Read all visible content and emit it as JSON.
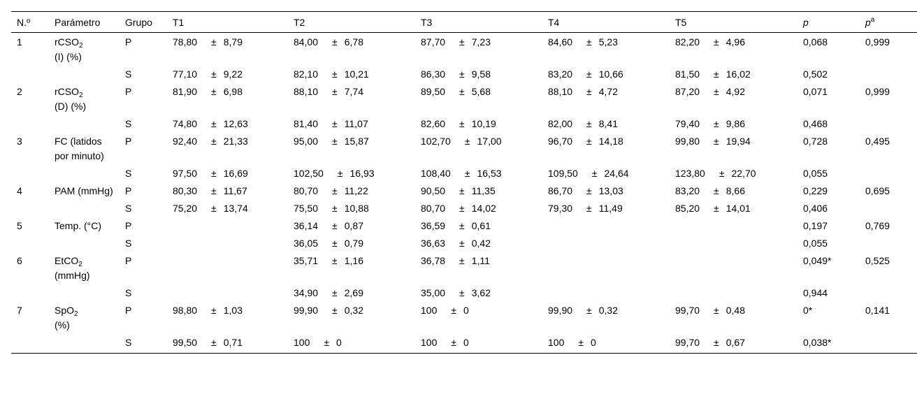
{
  "headers": {
    "n": "N.º",
    "param": "Parámetro",
    "grupo": "Grupo",
    "t1": "T1",
    "t2": "T2",
    "t3": "T3",
    "t4": "T4",
    "t5": "T5",
    "p": "p",
    "pa_base": "p",
    "pa_sup": "a"
  },
  "pm": "±",
  "params": [
    {
      "n": "1",
      "name_main": "rCSO",
      "name_sub": "2",
      "name_rest": "(I) (%)",
      "pa": "0,999"
    },
    {
      "n": "2",
      "name_main": "rCSO",
      "name_sub": "2",
      "name_rest": "(D) (%)",
      "pa": "0,999"
    },
    {
      "n": "3",
      "name_main": "FC (latidos por minuto)",
      "name_sub": "",
      "name_rest": "",
      "pa": "0,495"
    },
    {
      "n": "4",
      "name_main": "PAM (mmHg)",
      "name_sub": "",
      "name_rest": "",
      "pa": "0,695"
    },
    {
      "n": "5",
      "name_main": "Temp. (°C)",
      "name_sub": "",
      "name_rest": "",
      "pa": "0,769"
    },
    {
      "n": "6",
      "name_main": "EtCO",
      "name_sub": "2",
      "name_rest": "(mmHg)",
      "pa": "0,525"
    },
    {
      "n": "7",
      "name_main": "SpO",
      "name_sub": "2",
      "name_rest": "(%)",
      "pa": "0,141"
    }
  ],
  "rows": [
    {
      "grupo": "P",
      "t1": [
        "78,80",
        "8,79"
      ],
      "t2": [
        "84,00",
        "6,78"
      ],
      "t3": [
        "87,70",
        "7,23"
      ],
      "t4": [
        "84,60",
        "5,23"
      ],
      "t5": [
        "82,20",
        "4,96"
      ],
      "p": "0,068"
    },
    {
      "grupo": "S",
      "t1": [
        "77,10",
        "9,22"
      ],
      "t2": [
        "82,10",
        "10,21"
      ],
      "t3": [
        "86,30",
        "9,58"
      ],
      "t4": [
        "83,20",
        "10,66"
      ],
      "t5": [
        "81,50",
        "16,02"
      ],
      "p": "0,502"
    },
    {
      "grupo": "P",
      "t1": [
        "81,90",
        "6,98"
      ],
      "t2": [
        "88,10",
        "7,74"
      ],
      "t3": [
        "89,50",
        "5,68"
      ],
      "t4": [
        "88,10",
        "4,72"
      ],
      "t5": [
        "87,20",
        "4,92"
      ],
      "p": "0,071"
    },
    {
      "grupo": "S",
      "t1": [
        "74,80",
        "12,63"
      ],
      "t2": [
        "81,40",
        "11,07"
      ],
      "t3": [
        "82,60",
        "10,19"
      ],
      "t4": [
        "82,00",
        "8,41"
      ],
      "t5": [
        "79,40",
        "9,86"
      ],
      "p": "0,468"
    },
    {
      "grupo": "P",
      "t1": [
        "92,40",
        "21,33"
      ],
      "t2": [
        "95,00",
        "15,87"
      ],
      "t3": [
        "102,70",
        "17,00"
      ],
      "t4": [
        "96,70",
        "14,18"
      ],
      "t5": [
        "99,80",
        "19,94"
      ],
      "p": "0,728"
    },
    {
      "grupo": "S",
      "t1": [
        "97,50",
        "16,69"
      ],
      "t2": [
        "102,50",
        "16,93"
      ],
      "t3": [
        "108,40",
        "16,53"
      ],
      "t4": [
        "109,50",
        "24,64"
      ],
      "t5": [
        "123,80",
        "22,70"
      ],
      "p": "0,055"
    },
    {
      "grupo": "P",
      "t1": [
        "80,30",
        "11,67"
      ],
      "t2": [
        "80,70",
        "11,22"
      ],
      "t3": [
        "90,50",
        "11,35"
      ],
      "t4": [
        "86,70",
        "13,03"
      ],
      "t5": [
        "83,20",
        "8,66"
      ],
      "p": "0,229"
    },
    {
      "grupo": "S",
      "t1": [
        "75,20",
        "13,74"
      ],
      "t2": [
        "75,50",
        "10,88"
      ],
      "t3": [
        "80,70",
        "14,02"
      ],
      "t4": [
        "79,30",
        "11,49"
      ],
      "t5": [
        "85,20",
        "14,01"
      ],
      "p": "0,406"
    },
    {
      "grupo": "P",
      "t1": [
        "",
        ""
      ],
      "t2": [
        "36,14",
        "0,87"
      ],
      "t3": [
        "36,59",
        "0,61"
      ],
      "t4": [
        "",
        ""
      ],
      "t5": [
        "",
        ""
      ],
      "p": "0,197"
    },
    {
      "grupo": "S",
      "t1": [
        "",
        ""
      ],
      "t2": [
        "36,05",
        "0,79"
      ],
      "t3": [
        "36,63",
        "0,42"
      ],
      "t4": [
        "",
        ""
      ],
      "t5": [
        "",
        ""
      ],
      "p": "0,055"
    },
    {
      "grupo": "P",
      "t1": [
        "",
        ""
      ],
      "t2": [
        "35,71",
        "1,16"
      ],
      "t3": [
        "36,78",
        "1,11"
      ],
      "t4": [
        "",
        ""
      ],
      "t5": [
        "",
        ""
      ],
      "p": "0,049*"
    },
    {
      "grupo": "S",
      "t1": [
        "",
        ""
      ],
      "t2": [
        "34,90",
        "2,69"
      ],
      "t3": [
        "35,00",
        "3,62"
      ],
      "t4": [
        "",
        ""
      ],
      "t5": [
        "",
        ""
      ],
      "p": "0,944"
    },
    {
      "grupo": "P",
      "t1": [
        "98,80",
        "1,03"
      ],
      "t2": [
        "99,90",
        "0,32"
      ],
      "t3": [
        "100",
        "0"
      ],
      "t4": [
        "99,90",
        "0,32"
      ],
      "t5": [
        "99,70",
        "0,48"
      ],
      "p": "0*"
    },
    {
      "grupo": "S",
      "t1": [
        "99,50",
        "0,71"
      ],
      "t2": [
        "100",
        "0"
      ],
      "t3": [
        "100",
        "0"
      ],
      "t4": [
        "100",
        "0"
      ],
      "t5": [
        "99,70",
        "0,67"
      ],
      "p": "0,038*"
    }
  ]
}
